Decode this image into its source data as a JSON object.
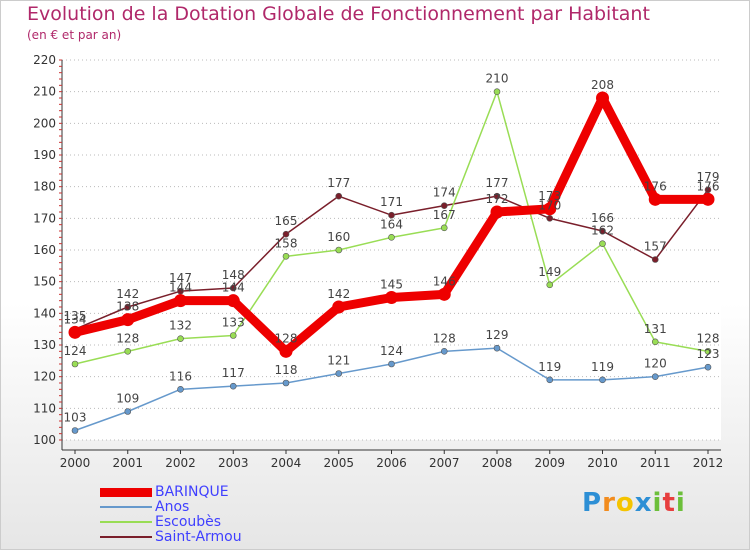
{
  "chart_data": {
    "type": "line",
    "title": "Evolution de la Dotation Globale de Fonctionnement par Habitant",
    "subtitle": "(en € et par an)",
    "xlabel": "",
    "ylabel": "",
    "ylim": [
      100,
      220
    ],
    "yticks": [
      "100",
      "110",
      "120",
      "130",
      "140",
      "150",
      "160",
      "170",
      "180",
      "190",
      "200",
      "210",
      "220"
    ],
    "categories": [
      "2000",
      "2001",
      "2002",
      "2003",
      "2004",
      "2005",
      "2006",
      "2007",
      "2008",
      "2009",
      "2010",
      "2011",
      "2012"
    ],
    "series": [
      {
        "name": "Saint-Armou",
        "color": "#7a1f2b",
        "values": [
          135,
          142,
          147,
          148,
          165,
          177,
          171,
          174,
          177,
          170,
          166,
          157,
          179
        ]
      },
      {
        "name": "Escoubès",
        "color": "#99dd55",
        "values": [
          124,
          128,
          132,
          133,
          158,
          160,
          164,
          167,
          210,
          149,
          162,
          131,
          128
        ]
      },
      {
        "name": "Anos",
        "color": "#6699cc",
        "values": [
          103,
          109,
          116,
          117,
          118,
          121,
          124,
          128,
          129,
          119,
          119,
          120,
          123
        ]
      },
      {
        "name": "BARINQUE",
        "color": "#ee0000",
        "values": [
          134,
          138,
          144,
          144,
          128,
          142,
          145,
          146,
          172,
          173,
          208,
          176,
          176
        ]
      }
    ],
    "legend": [
      "BARINQUE",
      "Anos",
      "Escoubès",
      "Saint-Armou"
    ],
    "legend_position": "bottom-left"
  },
  "brand": {
    "letters": [
      "P",
      "r",
      "o",
      "x",
      "i",
      "t",
      "i"
    ],
    "colors": [
      "#2d8fd5",
      "#f28c1e",
      "#f5c400",
      "#2d8fd5",
      "#6cbf3a",
      "#e73e3e",
      "#6cbf3a"
    ]
  }
}
